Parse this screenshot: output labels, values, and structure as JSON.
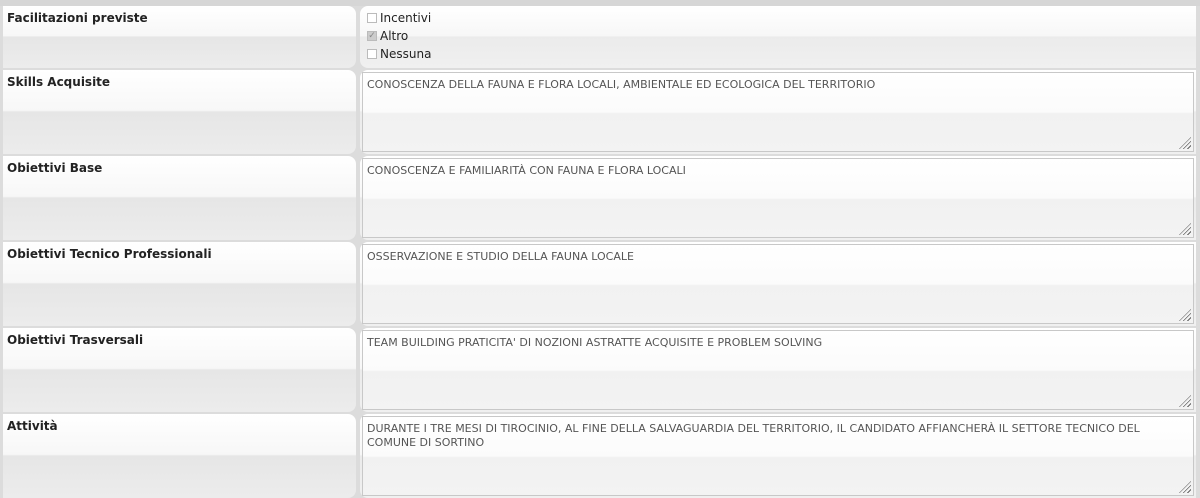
{
  "facilitazioni": {
    "label": "Facilitazioni previste",
    "options": [
      {
        "label": "Incentivi",
        "checked": false
      },
      {
        "label": "Altro",
        "checked": true
      },
      {
        "label": "Nessuna",
        "checked": false
      }
    ]
  },
  "fields": [
    {
      "label": "Skills Acquisite",
      "value": "CONOSCENZA DELLA FAUNA E FLORA LOCALI, AMBIENTALE ED ECOLOGICA DEL TERRITORIO"
    },
    {
      "label": "Obiettivi Base",
      "value": "CONOSCENZA E FAMILIARITÀ CON FAUNA E FLORA LOCALI"
    },
    {
      "label": "Obiettivi Tecnico Professionali",
      "value": "OSSERVAZIONE E STUDIO DELLA FAUNA LOCALE"
    },
    {
      "label": "Obiettivi Trasversali",
      "value": "TEAM BUILDING PRATICITA' DI NOZIONI ASTRATTE ACQUISITE E PROBLEM SOLVING"
    },
    {
      "label": "Attività",
      "value": "DURANTE I TRE MESI DI TIROCINIO, AL FINE DELLA SALVAGUARDIA DEL TERRITORIO, IL CANDIDATO AFFIANCHERÀ IL SETTORE TECNICO DEL COMUNE DI SORTINO"
    }
  ]
}
